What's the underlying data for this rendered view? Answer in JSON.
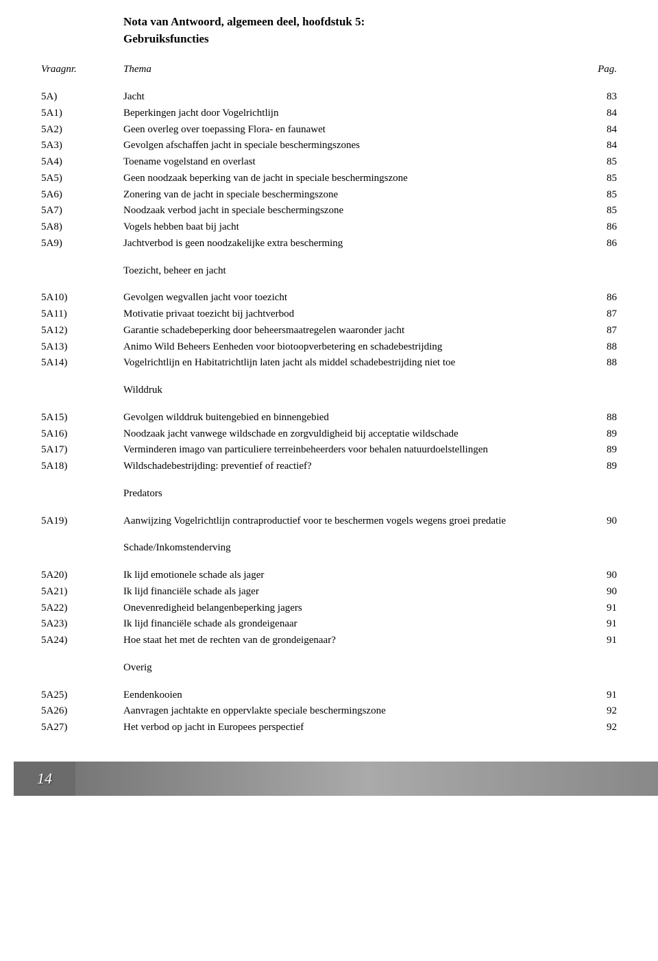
{
  "title_line1": "Nota van Antwoord, algemeen deel, hoofdstuk 5:",
  "title_line2": "Gebruiksfuncties",
  "header": {
    "id": "Vraagnr.",
    "thema": "Thema",
    "pag": "Pag."
  },
  "sections": [
    {
      "heading": null,
      "rows": [
        {
          "id": "5A)",
          "label": "Jacht",
          "page": "83"
        },
        {
          "id": "5A1)",
          "label": "Beperkingen jacht door Vogelrichtlijn",
          "page": "84"
        },
        {
          "id": "5A2)",
          "label": "Geen overleg over toepassing Flora- en faunawet",
          "page": "84"
        },
        {
          "id": "5A3)",
          "label": "Gevolgen afschaffen jacht in speciale beschermingszones",
          "page": "84"
        },
        {
          "id": "5A4)",
          "label": "Toename vogelstand en overlast",
          "page": "85"
        },
        {
          "id": "5A5)",
          "label": "Geen noodzaak beperking van de jacht in speciale beschermingszone",
          "page": "85"
        },
        {
          "id": "5A6)",
          "label": "Zonering van de jacht in speciale beschermingszone",
          "page": "85"
        },
        {
          "id": "5A7)",
          "label": "Noodzaak verbod jacht in speciale beschermingszone",
          "page": "85"
        },
        {
          "id": "5A8)",
          "label": "Vogels hebben baat bij jacht",
          "page": "86"
        },
        {
          "id": "5A9)",
          "label": "Jachtverbod is geen noodzakelijke extra bescherming",
          "page": "86"
        }
      ]
    },
    {
      "heading": "Toezicht, beheer en jacht",
      "rows": [
        {
          "id": "5A10)",
          "label": "Gevolgen wegvallen jacht voor toezicht",
          "page": "86"
        },
        {
          "id": "5A11)",
          "label": "Motivatie privaat toezicht bij jachtverbod",
          "page": "87"
        },
        {
          "id": "5A12)",
          "label": "Garantie schadebeperking door beheersmaatregelen waaronder jacht",
          "page": "87"
        },
        {
          "id": "5A13)",
          "label": "Animo Wild Beheers Eenheden voor biotoopverbetering en schadebestrijding",
          "page": "88"
        },
        {
          "id": "5A14)",
          "label": "Vogelrichtlijn en Habitatrichtlijn laten jacht als middel schadebestrijding niet toe",
          "page": "88"
        }
      ]
    },
    {
      "heading": "Wilddruk",
      "rows": [
        {
          "id": "5A15)",
          "label": "Gevolgen wilddruk buitengebied en binnengebied",
          "page": "88"
        },
        {
          "id": "5A16)",
          "label": "Noodzaak jacht vanwege wildschade en zorgvuldigheid bij acceptatie wildschade",
          "page": "89"
        },
        {
          "id": "5A17)",
          "label": "Verminderen imago van particuliere terreinbeheerders voor behalen natuurdoelstellingen",
          "page": "89"
        },
        {
          "id": "5A18)",
          "label": "Wildschadebestrijding: preventief of reactief?",
          "page": "89"
        }
      ]
    },
    {
      "heading": "Predators",
      "rows": [
        {
          "id": "5A19)",
          "label": "Aanwijzing Vogelrichtlijn contraproductief voor te beschermen vogels wegens groei predatie",
          "page": "90"
        }
      ]
    },
    {
      "heading": "Schade/Inkomstenderving",
      "rows": [
        {
          "id": "5A20)",
          "label": "Ik lijd emotionele schade als jager",
          "page": "90"
        },
        {
          "id": "5A21)",
          "label": "Ik lijd financiële schade als jager",
          "page": "90"
        },
        {
          "id": "5A22)",
          "label": "Onevenredigheid belangenbeperking jagers",
          "page": "91"
        },
        {
          "id": "5A23)",
          "label": "Ik lijd financiële schade als grondeigenaar",
          "page": "91"
        },
        {
          "id": "5A24)",
          "label": "Hoe staat het met de rechten van de grondeigenaar?",
          "page": "91"
        }
      ]
    },
    {
      "heading": "Overig",
      "rows": [
        {
          "id": "5A25)",
          "label": "Eendenkooien",
          "page": "91"
        },
        {
          "id": "5A26)",
          "label": "Aanvragen jachtakte en oppervlakte speciale beschermingszone",
          "page": "92"
        },
        {
          "id": "5A27)",
          "label": "Het verbod op jacht in Europees perspectief",
          "page": "92"
        }
      ]
    }
  ],
  "page_number": "14"
}
